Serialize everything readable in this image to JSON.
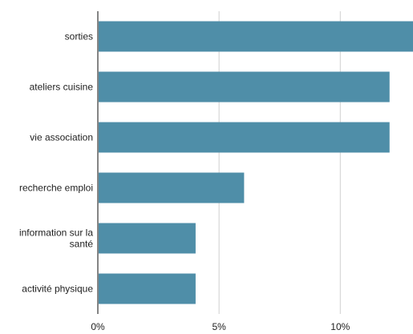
{
  "chart_data": {
    "type": "bar",
    "orientation": "horizontal",
    "categories": [
      "sorties",
      "ateliers cuisine",
      "vie association",
      "recherche emploi",
      "information sur la santé",
      "activité physique"
    ],
    "category_lines": [
      [
        "sorties"
      ],
      [
        "ateliers cuisine"
      ],
      [
        "vie association"
      ],
      [
        "recherche emploi"
      ],
      [
        "information sur la",
        "santé"
      ],
      [
        "activité physique"
      ]
    ],
    "values": [
      13,
      12,
      12,
      6,
      4,
      4
    ],
    "value_unit": "%",
    "xlim": [
      0,
      13
    ],
    "x_ticks": [
      0,
      5,
      10
    ],
    "x_tick_labels": [
      "0%",
      "5%",
      "10%"
    ],
    "grid": true,
    "bar_color": "#4f8ea8"
  }
}
